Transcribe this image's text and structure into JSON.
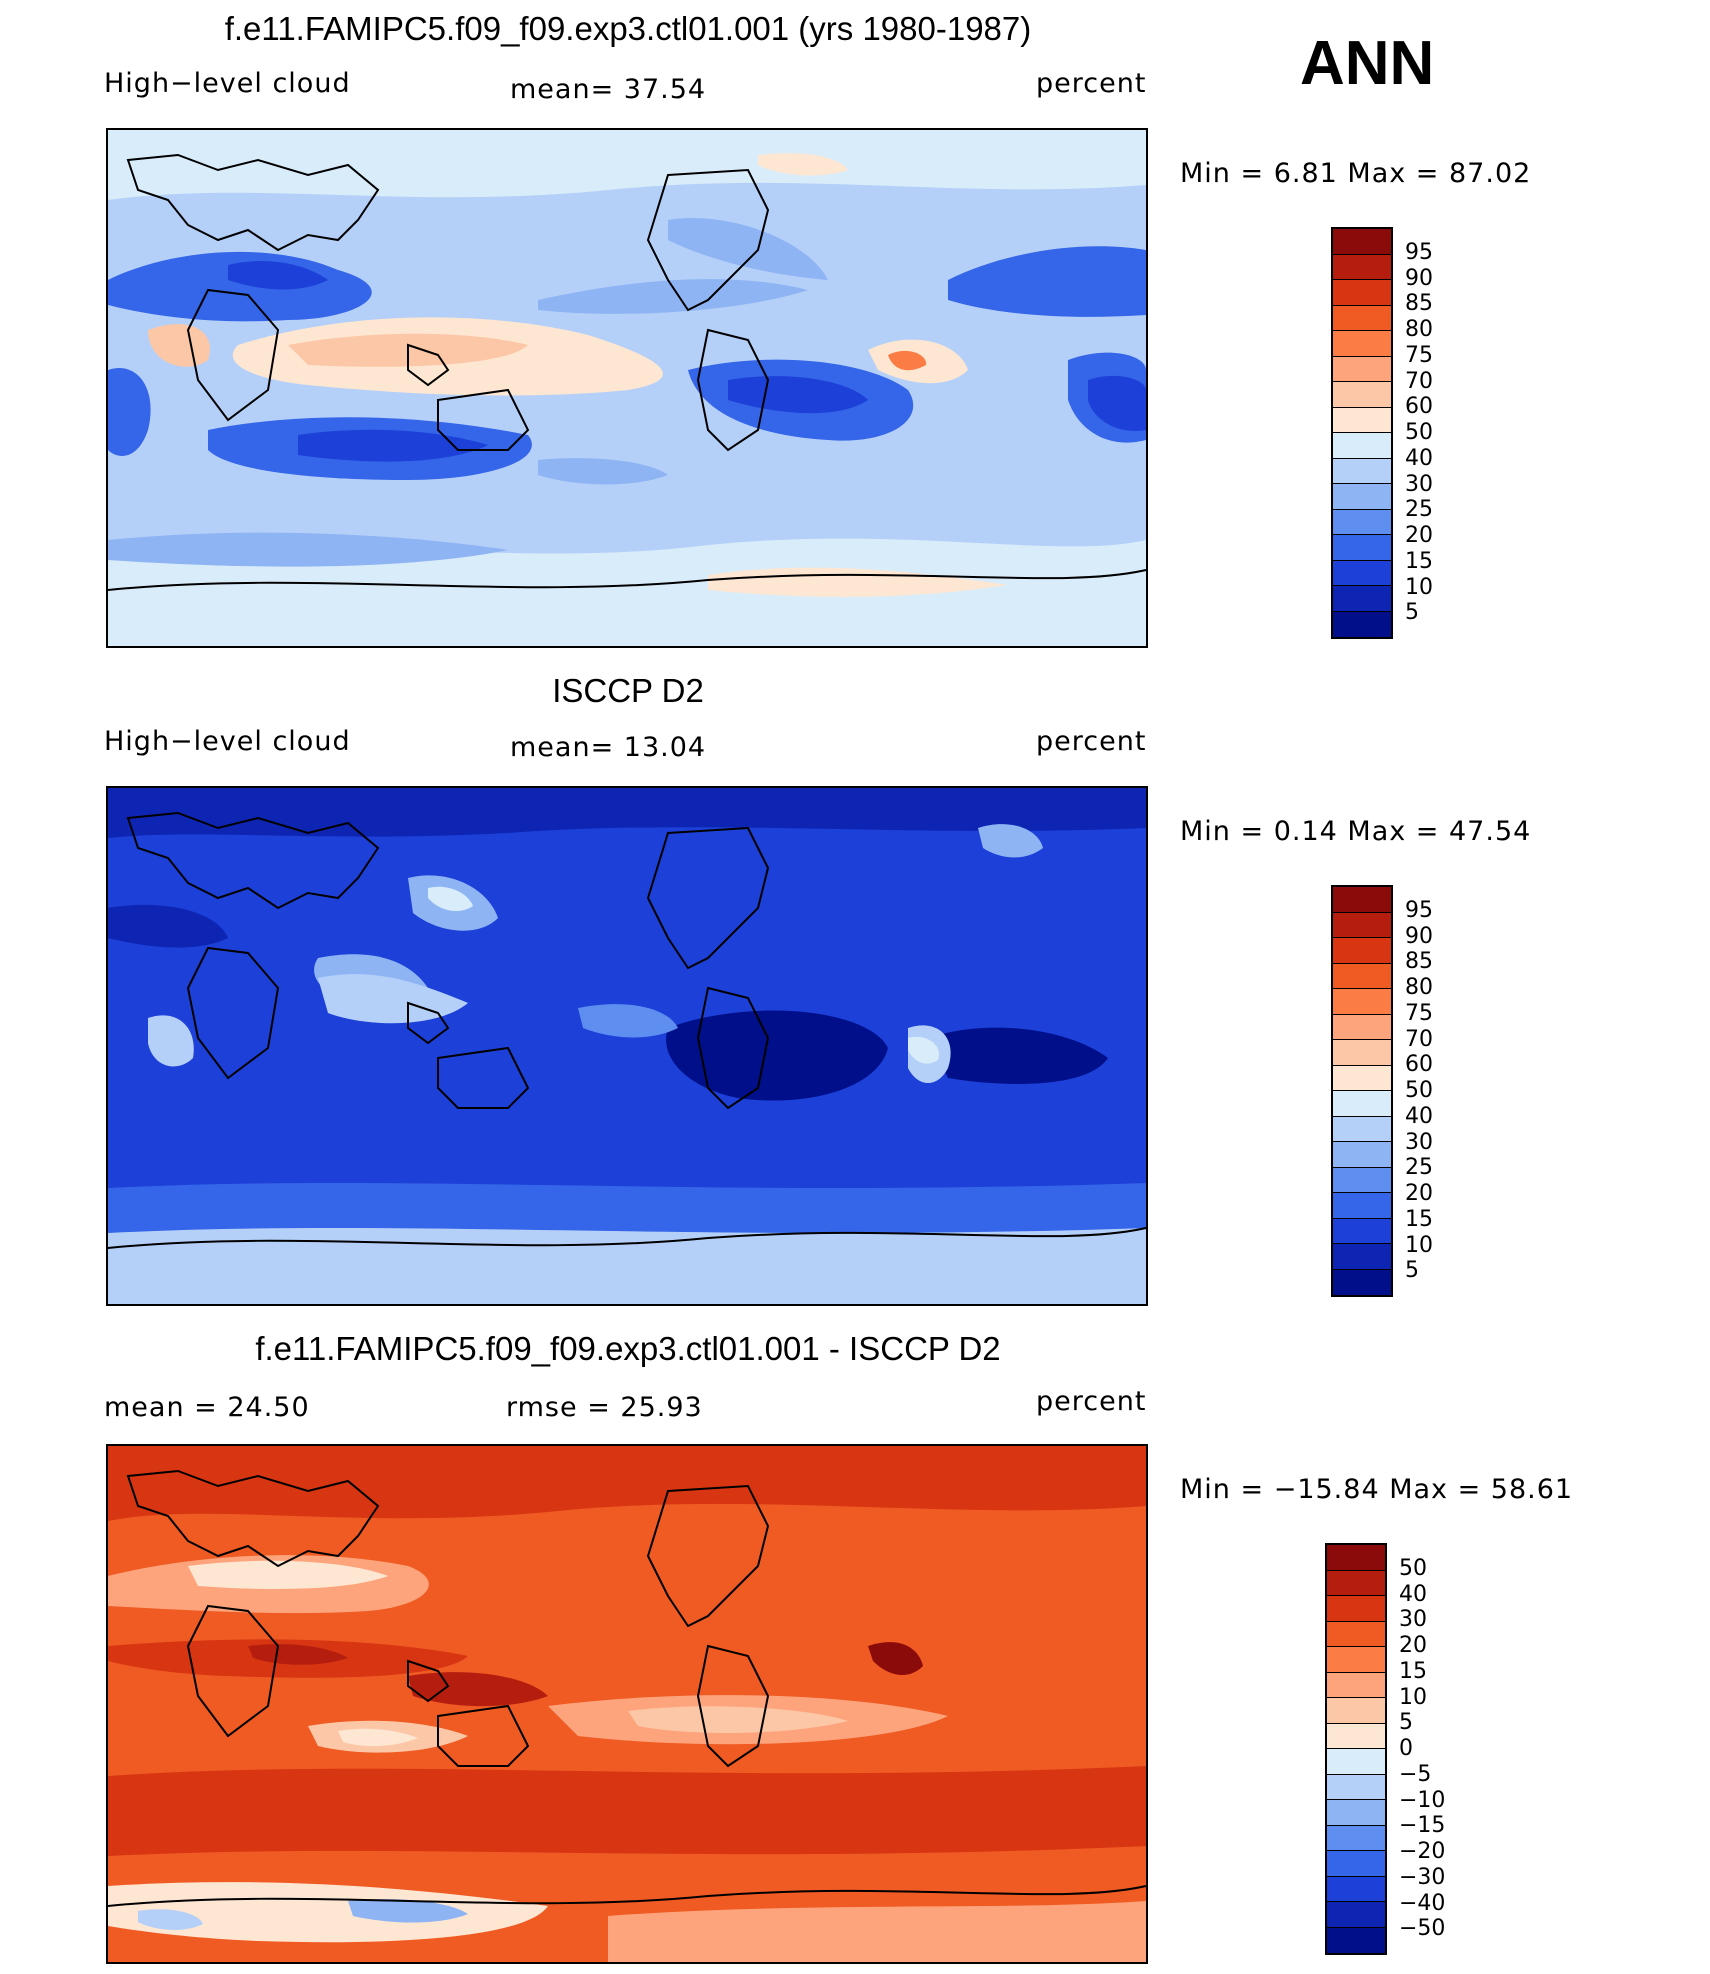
{
  "ann_label": "ANN",
  "panels": [
    {
      "title": "f.e11.FAMIPC5.f09_f09.exp3.ctl01.001 (yrs 1980-1987)",
      "left_label": "High−level cloud",
      "center_label": "mean=   37.54",
      "right_label": "percent",
      "minmax": "Min =    6.81  Max =    87.02",
      "ticks": [
        "95",
        "90",
        "85",
        "80",
        "75",
        "70",
        "60",
        "50",
        "40",
        "30",
        "25",
        "20",
        "15",
        "10",
        "5"
      ],
      "colors": [
        "#8b0a0a",
        "#b51e0f",
        "#d83512",
        "#f05a23",
        "#fb7c45",
        "#fda47c",
        "#fcc7a6",
        "#fde6d2",
        "#d9ecfa",
        "#b5d0f8",
        "#8fb4f4",
        "#5e8ef0",
        "#3565e8",
        "#1c40d8",
        "#0d25b2",
        "#01108a"
      ],
      "field": "model"
    },
    {
      "title": "ISCCP D2",
      "left_label": "High−level cloud",
      "center_label": "mean=   13.04",
      "right_label": "percent",
      "minmax": "Min =    0.14  Max =    47.54",
      "ticks": [
        "95",
        "90",
        "85",
        "80",
        "75",
        "70",
        "60",
        "50",
        "40",
        "30",
        "25",
        "20",
        "15",
        "10",
        "5"
      ],
      "colors": [
        "#8b0a0a",
        "#b51e0f",
        "#d83512",
        "#f05a23",
        "#fb7c45",
        "#fda47c",
        "#fcc7a6",
        "#fde6d2",
        "#d9ecfa",
        "#b5d0f8",
        "#8fb4f4",
        "#5e8ef0",
        "#3565e8",
        "#1c40d8",
        "#0d25b2",
        "#01108a"
      ],
      "field": "obs"
    },
    {
      "title": "f.e11.FAMIPC5.f09_f09.exp3.ctl01.001 - ISCCP D2",
      "left_label": "mean =    24.50",
      "center_label": "rmse =    25.93",
      "right_label": "percent",
      "minmax": "Min = −15.84  Max =    58.61",
      "ticks": [
        "50",
        "40",
        "30",
        "20",
        "15",
        "10",
        "5",
        "0",
        "−5",
        "−10",
        "−15",
        "−20",
        "−30",
        "−40",
        "−50"
      ],
      "colors": [
        "#8b0a0a",
        "#b51e0f",
        "#d83512",
        "#f05a23",
        "#fb7c45",
        "#fda47c",
        "#fcc7a6",
        "#fde6d2",
        "#d9ecfa",
        "#b5d0f8",
        "#8fb4f4",
        "#5e8ef0",
        "#3565e8",
        "#1c40d8",
        "#0d25b2",
        "#01108a"
      ],
      "field": "diff"
    }
  ]
}
